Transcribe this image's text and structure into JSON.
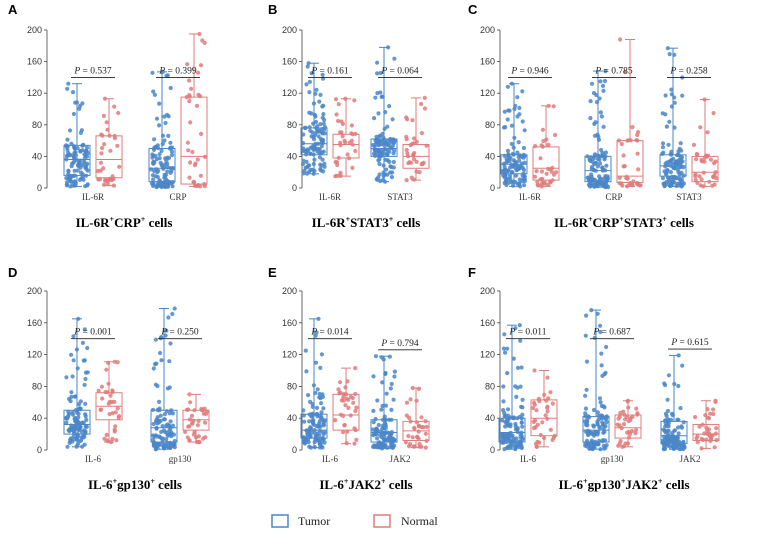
{
  "colors": {
    "tumor": "#4a86c8",
    "normal": "#e07b7b"
  },
  "legend": [
    {
      "name": "Tumor",
      "color_key": "tumor"
    },
    {
      "name": "Normal",
      "color_key": "normal"
    }
  ],
  "chart_data": [
    {
      "panel": "A",
      "type": "box",
      "title_parts": [
        [
          "IL-6R",
          ""
        ],
        [
          "+",
          "sup"
        ],
        [
          "CRP",
          ""
        ],
        [
          "+",
          "sup"
        ],
        [
          " cells",
          ""
        ]
      ],
      "ylim": [
        0,
        200
      ],
      "yticks": [
        0,
        40,
        80,
        120,
        160,
        200
      ],
      "groups": [
        {
          "category": "IL-6R",
          "p": "P = 0.537",
          "tumor": {
            "min": 2,
            "q1": 16,
            "median": 36,
            "q3": 54,
            "max": 132,
            "n": 110,
            "seed": 11
          },
          "normal": {
            "min": 3,
            "q1": 13,
            "median": 36,
            "q3": 66,
            "max": 113,
            "n": 35,
            "seed": 12
          }
        },
        {
          "category": "CRP",
          "p": "P = 0.399",
          "tumor": {
            "min": 1,
            "q1": 8,
            "median": 25,
            "q3": 50,
            "max": 147,
            "n": 110,
            "seed": 13
          },
          "normal": {
            "min": 2,
            "q1": 5,
            "median": 40,
            "q3": 115,
            "max": 195,
            "n": 35,
            "seed": 14
          }
        }
      ]
    },
    {
      "panel": "B",
      "type": "box",
      "title_parts": [
        [
          "IL-6R",
          ""
        ],
        [
          "+",
          "sup"
        ],
        [
          "STAT3",
          ""
        ],
        [
          "+",
          "sup"
        ],
        [
          " cells",
          ""
        ]
      ],
      "ylim": [
        0,
        200
      ],
      "yticks": [
        0,
        40,
        80,
        120,
        160,
        200
      ],
      "groups": [
        {
          "category": "IL-6R",
          "p": "P = 0.161",
          "tumor": {
            "min": 18,
            "q1": 42,
            "median": 56,
            "q3": 76,
            "max": 158,
            "n": 110,
            "seed": 21
          },
          "normal": {
            "min": 15,
            "q1": 38,
            "median": 55,
            "q3": 68,
            "max": 113,
            "n": 35,
            "seed": 22
          }
        },
        {
          "category": "STAT3",
          "p": "P = 0.064",
          "tumor": {
            "min": 8,
            "q1": 40,
            "median": 50,
            "q3": 62,
            "max": 178,
            "n": 110,
            "seed": 23
          },
          "normal": {
            "min": 10,
            "q1": 25,
            "median": 40,
            "q3": 55,
            "max": 114,
            "n": 35,
            "seed": 24
          }
        }
      ]
    },
    {
      "panel": "C",
      "type": "box",
      "title_parts": [
        [
          "IL-6R",
          ""
        ],
        [
          "+",
          "sup"
        ],
        [
          "CRP",
          ""
        ],
        [
          "+",
          "sup"
        ],
        [
          "STAT3",
          ""
        ],
        [
          "+",
          "sup"
        ],
        [
          " cells",
          ""
        ]
      ],
      "ylim": [
        0,
        200
      ],
      "yticks": [
        0,
        40,
        80,
        120,
        160,
        200
      ],
      "groups": [
        {
          "category": "IL-6R",
          "p": "P = 0.946",
          "tumor": {
            "min": 2,
            "q1": 18,
            "median": 30,
            "q3": 42,
            "max": 132,
            "n": 110,
            "seed": 31
          },
          "normal": {
            "min": 2,
            "q1": 10,
            "median": 25,
            "q3": 52,
            "max": 104,
            "n": 35,
            "seed": 32
          }
        },
        {
          "category": "CRP",
          "p": "P = 0.785",
          "tumor": {
            "min": 1,
            "q1": 8,
            "median": 22,
            "q3": 40,
            "max": 148,
            "n": 110,
            "seed": 33
          },
          "normal": {
            "min": 2,
            "q1": 7,
            "median": 15,
            "q3": 60,
            "max": 188,
            "n": 35,
            "seed": 34
          }
        },
        {
          "category": "STAT3",
          "p": "P = 0.258",
          "tumor": {
            "min": 2,
            "q1": 15,
            "median": 28,
            "q3": 42,
            "max": 177,
            "n": 110,
            "seed": 35
          },
          "normal": {
            "min": 2,
            "q1": 8,
            "median": 20,
            "q3": 40,
            "max": 112,
            "n": 35,
            "seed": 36
          }
        }
      ]
    },
    {
      "panel": "D",
      "type": "box",
      "title_parts": [
        [
          "IL-6",
          ""
        ],
        [
          "+",
          "sup"
        ],
        [
          "gp130",
          ""
        ],
        [
          "+",
          "sup"
        ],
        [
          " cells",
          ""
        ]
      ],
      "ylim": [
        0,
        200
      ],
      "yticks": [
        0,
        40,
        80,
        120,
        160,
        200
      ],
      "groups": [
        {
          "category": "IL-6",
          "p": "P = 0.001",
          "tumor": {
            "min": 4,
            "q1": 20,
            "median": 32,
            "q3": 50,
            "max": 165,
            "n": 110,
            "seed": 41
          },
          "normal": {
            "min": 10,
            "q1": 38,
            "median": 55,
            "q3": 72,
            "max": 111,
            "n": 35,
            "seed": 42
          }
        },
        {
          "category": "gp130",
          "p": "P = 0.250",
          "tumor": {
            "min": 1,
            "q1": 10,
            "median": 28,
            "q3": 50,
            "max": 178,
            "n": 110,
            "seed": 43
          },
          "normal": {
            "min": 10,
            "q1": 25,
            "median": 38,
            "q3": 50,
            "max": 70,
            "n": 35,
            "seed": 44
          }
        }
      ]
    },
    {
      "panel": "E",
      "type": "box",
      "title_parts": [
        [
          "IL-6",
          ""
        ],
        [
          "+",
          "sup"
        ],
        [
          "JAK2",
          ""
        ],
        [
          "+",
          "sup"
        ],
        [
          " cells",
          ""
        ]
      ],
      "ylim": [
        0,
        200
      ],
      "yticks": [
        0,
        40,
        80,
        120,
        160,
        200
      ],
      "groups": [
        {
          "category": "IL-6",
          "p": "P = 0.014",
          "tumor": {
            "min": 3,
            "q1": 15,
            "median": 25,
            "q3": 45,
            "max": 165,
            "n": 110,
            "seed": 51
          },
          "normal": {
            "min": 8,
            "q1": 25,
            "median": 44,
            "q3": 70,
            "max": 103,
            "n": 35,
            "seed": 52
          }
        },
        {
          "category": "JAK2",
          "p": "P = 0.794",
          "tumor": {
            "min": 2,
            "q1": 10,
            "median": 22,
            "q3": 38,
            "max": 118,
            "n": 110,
            "seed": 53
          },
          "normal": {
            "min": 3,
            "q1": 12,
            "median": 24,
            "q3": 36,
            "max": 78,
            "n": 35,
            "seed": 54
          }
        }
      ]
    },
    {
      "panel": "F",
      "type": "box",
      "title_parts": [
        [
          "IL-6",
          ""
        ],
        [
          "+",
          "sup"
        ],
        [
          "gp130",
          ""
        ],
        [
          "+",
          "sup"
        ],
        [
          "JAK2",
          ""
        ],
        [
          "+",
          "sup"
        ],
        [
          " cells",
          ""
        ]
      ],
      "ylim": [
        0,
        200
      ],
      "yticks": [
        0,
        40,
        80,
        120,
        160,
        200
      ],
      "groups": [
        {
          "category": "IL-6",
          "p": "P = 0.011",
          "tumor": {
            "min": 1,
            "q1": 10,
            "median": 22,
            "q3": 40,
            "max": 157,
            "n": 110,
            "seed": 61
          },
          "normal": {
            "min": 4,
            "q1": 18,
            "median": 40,
            "q3": 63,
            "max": 100,
            "n": 35,
            "seed": 62
          }
        },
        {
          "category": "gp130",
          "p": "P = 0.687",
          "tumor": {
            "min": 1,
            "q1": 10,
            "median": 25,
            "q3": 42,
            "max": 176,
            "n": 110,
            "seed": 63
          },
          "normal": {
            "min": 4,
            "q1": 15,
            "median": 28,
            "q3": 44,
            "max": 62,
            "n": 35,
            "seed": 64
          }
        },
        {
          "category": "JAK2",
          "p": "P = 0.615",
          "tumor": {
            "min": 1,
            "q1": 8,
            "median": 18,
            "q3": 36,
            "max": 119,
            "n": 110,
            "seed": 65
          },
          "normal": {
            "min": 2,
            "q1": 12,
            "median": 20,
            "q3": 32,
            "max": 62,
            "n": 35,
            "seed": 66
          }
        }
      ]
    }
  ]
}
